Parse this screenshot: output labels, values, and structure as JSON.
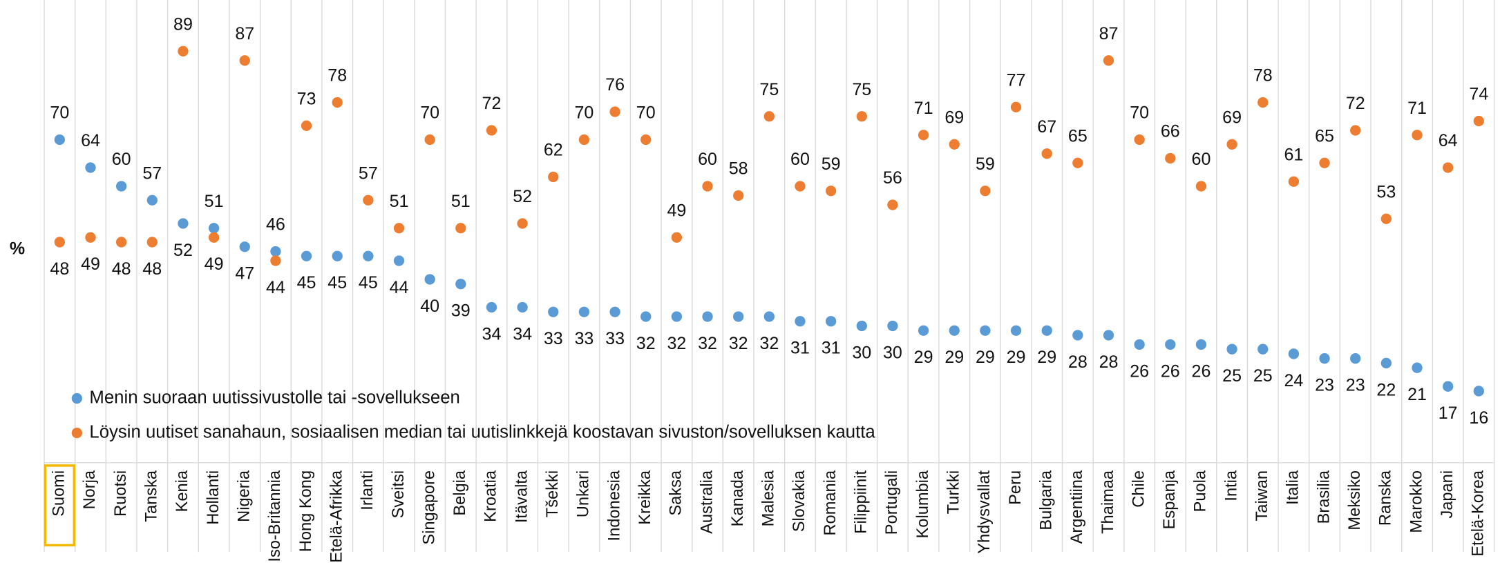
{
  "chart_data": {
    "type": "dot",
    "ylabel": "%",
    "ylim": [
      0,
      100
    ],
    "legend": "lower left",
    "highlight": {
      "category": 0,
      "color": "#f5b800"
    },
    "categories": [
      "Suomi",
      "Norja",
      "Ruotsi",
      "Tanska",
      "Kenia",
      "Hollanti",
      "Nigeria",
      "Iso-Britannia",
      "Hong Kong",
      "Etelä-Afrikka",
      "Irlanti",
      "Sveitsi",
      "Singapore",
      "Belgia",
      "Kroatia",
      "Itävalta",
      "Tšekki",
      "Unkari",
      "Indonesia",
      "Kreikka",
      "Saksa",
      "Australia",
      "Kanada",
      "Malesia",
      "Slovakia",
      "Romania",
      "Filippiinit",
      "Portugali",
      "Kolumbia",
      "Turkki",
      "Yhdysvallat",
      "Peru",
      "Bulgaria",
      "Argentiina",
      "Thaimaa",
      "Chile",
      "Espanja",
      "Puola",
      "Intia",
      "Taiwan",
      "Italia",
      "Brasilia",
      "Meksiko",
      "Ranska",
      "Marokko",
      "Japani",
      "Etelä-Korea"
    ],
    "series": [
      {
        "name": "Menin suoraan uutissivustolle tai -sovellukseen",
        "color": "#5b9bd5",
        "values": [
          70,
          64,
          60,
          57,
          52,
          51,
          47,
          46,
          45,
          45,
          45,
          44,
          40,
          39,
          34,
          34,
          33,
          33,
          33,
          32,
          32,
          32,
          32,
          32,
          31,
          31,
          30,
          30,
          29,
          29,
          29,
          29,
          29,
          28,
          28,
          26,
          26,
          26,
          25,
          25,
          24,
          23,
          23,
          22,
          21,
          17,
          16
        ]
      },
      {
        "name": "Löysin uutiset sanahaun, sosiaalisen median tai uutislinkkejä koostavan sivuston/sovelluksen kautta",
        "color": "#ed7d31",
        "values": [
          48,
          49,
          48,
          48,
          89,
          49,
          87,
          44,
          73,
          78,
          57,
          51,
          70,
          51,
          72,
          52,
          62,
          70,
          76,
          70,
          49,
          60,
          58,
          75,
          60,
          59,
          75,
          56,
          71,
          69,
          59,
          77,
          67,
          65,
          87,
          70,
          66,
          60,
          69,
          78,
          61,
          65,
          72,
          53,
          71,
          64,
          74
        ]
      }
    ]
  }
}
